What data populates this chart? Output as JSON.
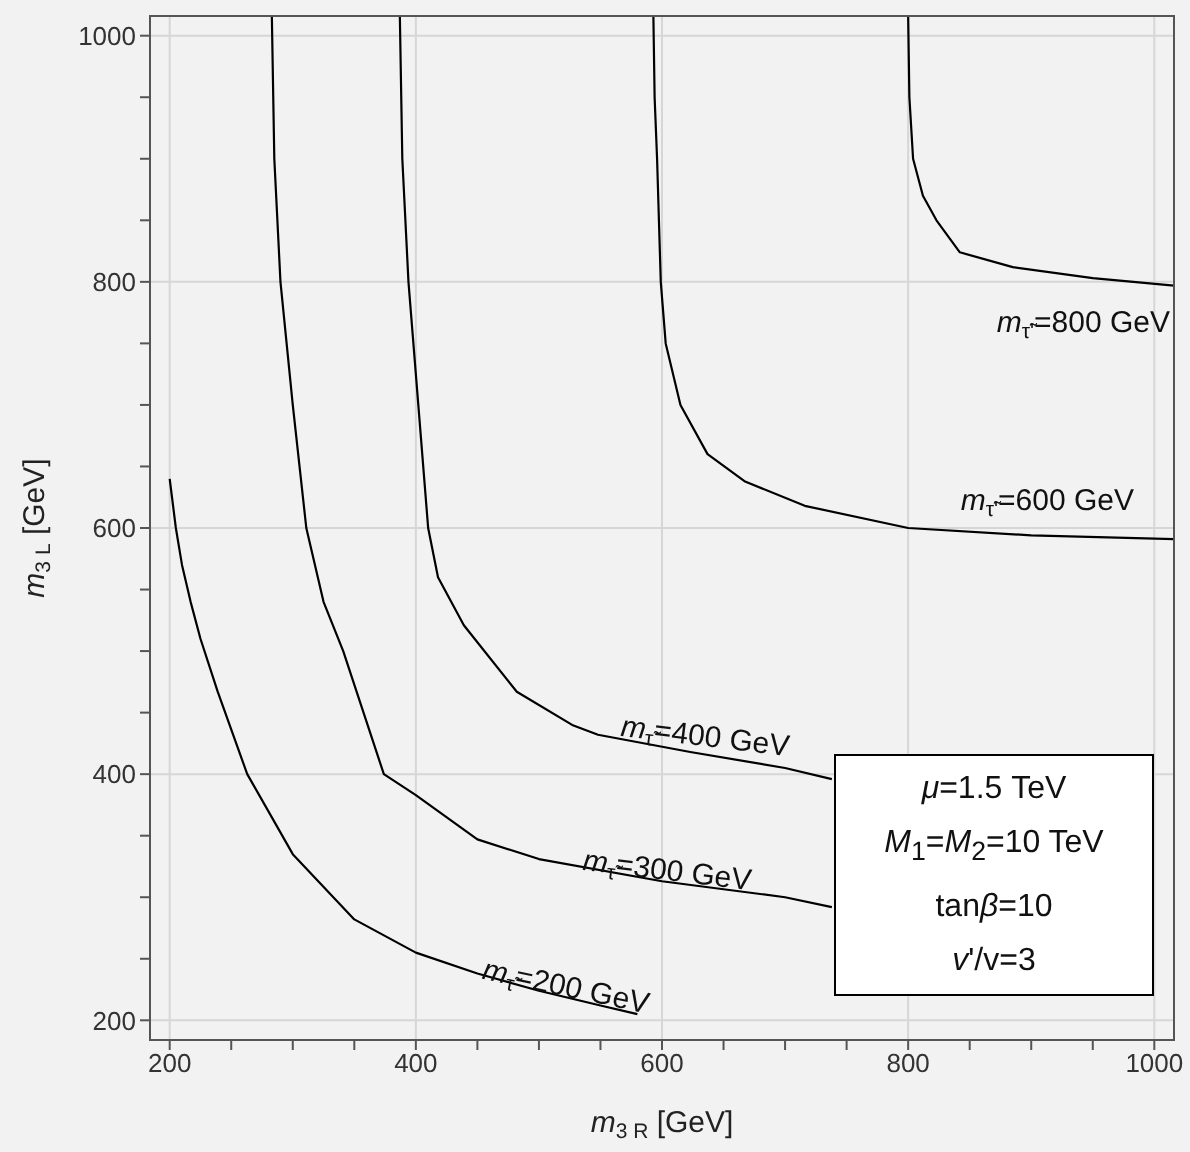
{
  "chart_data": {
    "type": "line",
    "xlabel": "m$_{3 R}$ [GeV]",
    "ylabel": "m$_{3 L}$ [GeV]",
    "xlim": [
      184,
      1016
    ],
    "ylim": [
      184,
      1016
    ],
    "xticks": [
      200,
      {
        "value": 250,
        "label": null
      },
      {
        "value": 300,
        "label": null
      },
      {
        "value": 350,
        "label": null
      },
      400,
      {
        "value": 450,
        "label": null
      },
      {
        "value": 500,
        "label": null
      },
      {
        "value": 550,
        "label": null
      },
      600,
      {
        "value": 650,
        "label": null
      },
      {
        "value": 700,
        "label": null
      },
      {
        "value": 750,
        "label": null
      },
      800,
      {
        "value": 850,
        "label": null
      },
      {
        "value": 900,
        "label": null
      },
      {
        "value": 950,
        "label": null
      },
      1000
    ],
    "yticks": [
      200,
      {
        "value": 250,
        "label": null
      },
      {
        "value": 300,
        "label": null
      },
      {
        "value": 350,
        "label": null
      },
      400,
      {
        "value": 450,
        "label": null
      },
      {
        "value": 500,
        "label": null
      },
      {
        "value": 550,
        "label": null
      },
      600,
      {
        "value": 650,
        "label": null
      },
      {
        "value": 700,
        "label": null
      },
      {
        "value": 750,
        "label": null
      },
      800,
      {
        "value": 850,
        "label": null
      },
      {
        "value": 900,
        "label": null
      },
      {
        "value": 950,
        "label": null
      },
      1000
    ],
    "grid": true,
    "marker": "none",
    "line_style": "solid",
    "series": [
      {
        "name": "m$_{τ̃}$=200 GeV",
        "color": "#000000",
        "x": [
          200,
          205,
          210,
          217,
          225,
          239,
          263,
          300,
          350,
          400,
          450,
          500,
          550,
          580
        ],
        "values": [
          640,
          600,
          570,
          540,
          510,
          467,
          400,
          335,
          282,
          255,
          238,
          224,
          212,
          205
        ]
      },
      {
        "name": "m$_{τ̃}$=300 GeV",
        "color": "#000000",
        "x": [
          283,
          285,
          290,
          300,
          311,
          325,
          341,
          374,
          400,
          450,
          500,
          600,
          700,
          738
        ],
        "values": [
          1016,
          900,
          800,
          700,
          600,
          540,
          500,
          400,
          383,
          347,
          331,
          313,
          300,
          292
        ]
      },
      {
        "name": "m$_{τ̃}$=400 GeV",
        "color": "#000000",
        "x": [
          387,
          389,
          394,
          402,
          410,
          418,
          439,
          482,
          527,
          548,
          623,
          700,
          738
        ],
        "values": [
          1016,
          900,
          800,
          700,
          600,
          560,
          521,
          467,
          440,
          432,
          418,
          405,
          396
        ]
      },
      {
        "name": "m$_{τ̃'}$=600 GeV",
        "color": "#000000",
        "x": [
          593,
          594,
          596,
          599,
          603,
          615,
          637,
          667,
          716,
          800,
          900,
          1016
        ],
        "values": [
          1016,
          950,
          900,
          800,
          750,
          700,
          660,
          638,
          618,
          600,
          594,
          591
        ]
      },
      {
        "name": "m$_{τ̃'}$=800 GeV",
        "color": "#000000",
        "x": [
          800,
          801,
          804,
          812,
          823,
          842,
          885,
          950,
          1016
        ],
        "values": [
          1016,
          950,
          900,
          870,
          850,
          824,
          812,
          803,
          797
        ]
      }
    ],
    "annotations": [
      "μ=1.5 TeV",
      "M$_{1}$=M$_{2}$=10 TeV",
      "tanβ=10",
      "v'/v=3"
    ]
  }
}
